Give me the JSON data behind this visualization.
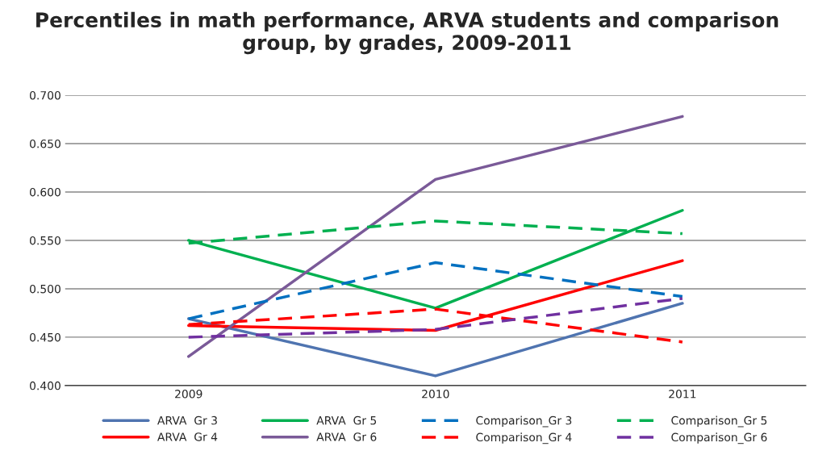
{
  "chart_data": {
    "type": "line",
    "title": "Percentiles in math performance, ARVA students and comparison group, by grades, 2009-2011",
    "categories": [
      "2009",
      "2010",
      "2011"
    ],
    "series": [
      {
        "name": "ARVA  Gr 3",
        "color": "#4f74b0",
        "line_style": "solid",
        "values": [
          0.469,
          0.41,
          0.485
        ]
      },
      {
        "name": "ARVA  Gr 4",
        "color": "#ff0000",
        "line_style": "solid",
        "values": [
          0.462,
          0.457,
          0.529
        ]
      },
      {
        "name": "ARVA  Gr 5",
        "color": "#00b050",
        "line_style": "solid",
        "values": [
          0.55,
          0.48,
          0.581
        ]
      },
      {
        "name": "ARVA  Gr 6",
        "color": "#7a5a98",
        "line_style": "solid",
        "values": [
          0.43,
          0.613,
          0.678
        ]
      },
      {
        "name": "Comparison_Gr 3",
        "color": "#0070c0",
        "line_style": "dashed",
        "values": [
          0.469,
          0.527,
          0.492
        ]
      },
      {
        "name": "Comparison_Gr 4",
        "color": "#ff0000",
        "line_style": "dashed",
        "values": [
          0.463,
          0.479,
          0.445
        ]
      },
      {
        "name": "Comparison_Gr 5",
        "color": "#00b050",
        "line_style": "dashed",
        "values": [
          0.547,
          0.57,
          0.557
        ]
      },
      {
        "name": "Comparison_Gr 6",
        "color": "#7030a0",
        "line_style": "dashed",
        "values": [
          0.45,
          0.458,
          0.49
        ]
      }
    ],
    "ylim": [
      0.4,
      0.7
    ],
    "yticks": [
      {
        "value": 0.4,
        "label": "0.400"
      },
      {
        "value": 0.45,
        "label": "0.450"
      },
      {
        "value": 0.5,
        "label": "0.500"
      },
      {
        "value": 0.55,
        "label": "0.550"
      },
      {
        "value": 0.6,
        "label": "0.600"
      },
      {
        "value": 0.65,
        "label": "0.650"
      },
      {
        "value": 0.7,
        "label": "0.700"
      }
    ],
    "grid": "y",
    "legend": "bottom",
    "marker": "none"
  }
}
